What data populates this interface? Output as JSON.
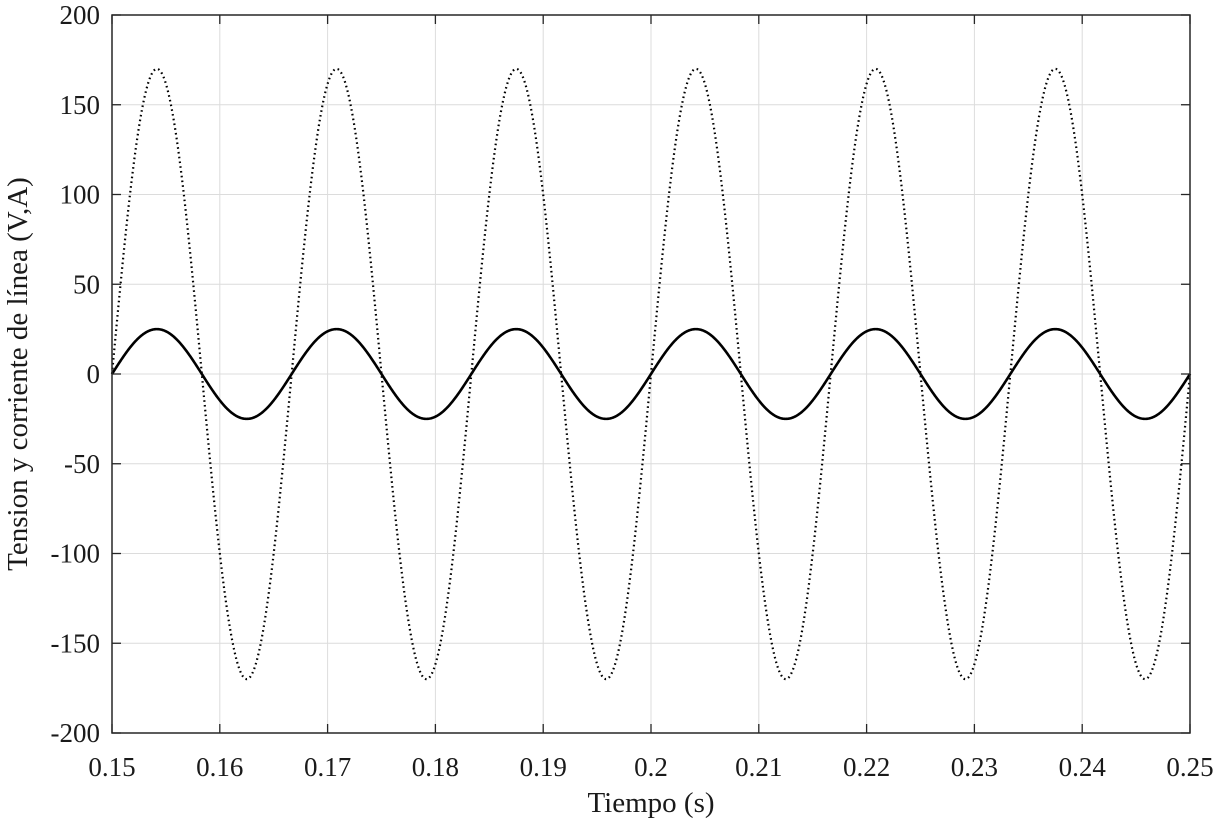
{
  "chart_data": {
    "type": "line",
    "xlabel": "Tiempo (s)",
    "ylabel": "Tension y corriente de línea (V,A)",
    "xlim": [
      0.15,
      0.25
    ],
    "ylim": [
      -200,
      200
    ],
    "xticks": [
      0.15,
      0.16,
      0.17,
      0.18,
      0.19,
      0.2,
      0.21,
      0.22,
      0.23,
      0.24,
      0.25
    ],
    "xtick_labels": [
      "0.15",
      "0.16",
      "0.17",
      "0.18",
      "0.19",
      "0.2",
      "0.21",
      "0.22",
      "0.23",
      "0.24",
      "0.25"
    ],
    "yticks": [
      -200,
      -150,
      -100,
      -50,
      0,
      50,
      100,
      150,
      200
    ],
    "ytick_labels": [
      "-200",
      "-150",
      "-100",
      "-50",
      "0",
      "50",
      "100",
      "150",
      "200"
    ],
    "grid": true,
    "legend": "none",
    "series": [
      {
        "style": "dotted",
        "color": "#000000",
        "waveform": "sine",
        "amplitude": 170,
        "frequency_hz": 60,
        "zero_crossing_rising_s": 0.15,
        "peaks_s": [
          0.1542,
          0.1708,
          0.1875,
          0.2042,
          0.2208,
          0.2375
        ],
        "troughs_s": [
          0.1625,
          0.1792,
          0.1958,
          0.2125,
          0.2292,
          0.2458
        ]
      },
      {
        "style": "solid",
        "color": "#000000",
        "waveform": "sine",
        "amplitude": 25,
        "frequency_hz": 60,
        "zero_crossing_rising_s": 0.15,
        "peaks_s": [
          0.1542,
          0.1708,
          0.1875,
          0.2042,
          0.2208,
          0.2375
        ],
        "troughs_s": [
          0.1625,
          0.1792,
          0.1958,
          0.2125,
          0.2292,
          0.2458
        ]
      }
    ]
  }
}
